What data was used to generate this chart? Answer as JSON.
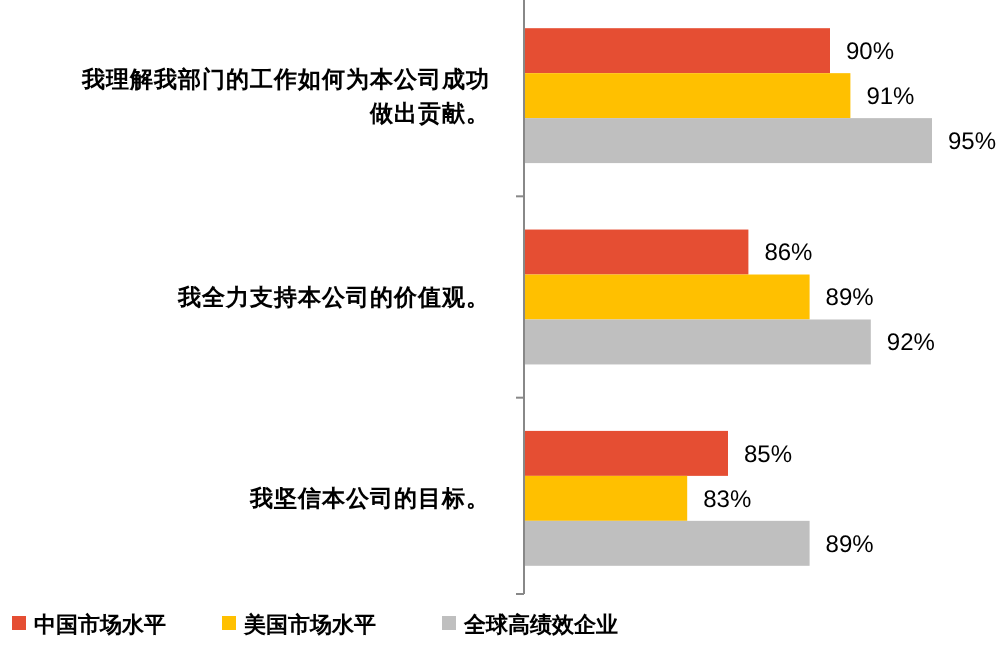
{
  "chart_data": {
    "type": "bar",
    "orientation": "horizontal",
    "categories": [
      "我理解我部门的工作如何为本公司成功做出贡献。",
      "我全力支持本公司的价值观。",
      "我坚信本公司的目标。"
    ],
    "series": [
      {
        "name": "中国市场水平",
        "color": "#e54e33",
        "values": [
          90,
          86,
          85
        ],
        "value_labels": [
          "90%",
          "86%",
          "85%"
        ]
      },
      {
        "name": "美国市场水平",
        "color": "#ffc000",
        "values": [
          91,
          89,
          83
        ],
        "value_labels": [
          "91%",
          "89%",
          "83%"
        ]
      },
      {
        "name": "全球高绩效企业",
        "color": "#bfbfbf",
        "values": [
          95,
          92,
          89
        ],
        "value_labels": [
          "95%",
          "92%",
          "89%"
        ]
      }
    ],
    "xlim": [
      75,
      95
    ],
    "legend": "bottom left"
  }
}
